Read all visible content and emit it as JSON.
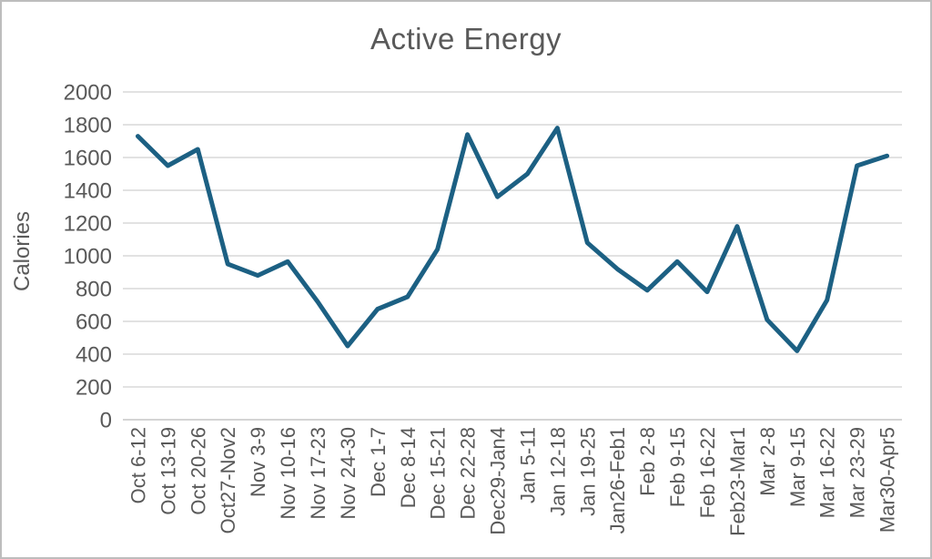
{
  "frame": {
    "background": "#ffffff",
    "border_color": "#bdbdbd"
  },
  "chart_data": {
    "type": "line",
    "title": "Active Energy",
    "ylabel": "Calories",
    "xlabel": "",
    "categories": [
      "Oct 6-12",
      "Oct 13-19",
      "Oct 20-26",
      "Oct27-Nov2",
      "Nov 3-9",
      "Nov 10-16",
      "Nov 17-23",
      "Nov 24-30",
      "Dec 1-7",
      "Dec 8-14",
      "Dec 15-21",
      "Dec 22-28",
      "Dec29-Jan4",
      "Jan 5-11",
      "Jan 12-18",
      "Jan 19-25",
      "Jan26-Feb1",
      "Feb 2-8",
      "Feb 9-15",
      "Feb 16-22",
      "Feb23-Mar1",
      "Mar 2-8",
      "Mar 9-15",
      "Mar 16-22",
      "Mar 23-29",
      "Mar30-Apr5"
    ],
    "series": [
      {
        "name": "Active Energy",
        "color": "#1c6083",
        "values": [
          1730,
          1550,
          1650,
          950,
          880,
          965,
          720,
          450,
          675,
          750,
          1040,
          1740,
          1360,
          1500,
          1780,
          1080,
          920,
          790,
          965,
          780,
          1180,
          610,
          420,
          730,
          1550,
          1610
        ]
      }
    ],
    "ylim": [
      0,
      2000
    ],
    "yticks": [
      0,
      200,
      400,
      600,
      800,
      1000,
      1200,
      1400,
      1600,
      1800,
      2000
    ],
    "grid": "horizontal",
    "legend": "none",
    "text_color": "#595959",
    "gridline_color": "#d9d9d9",
    "axis_line_color": "#c6c6c6"
  }
}
